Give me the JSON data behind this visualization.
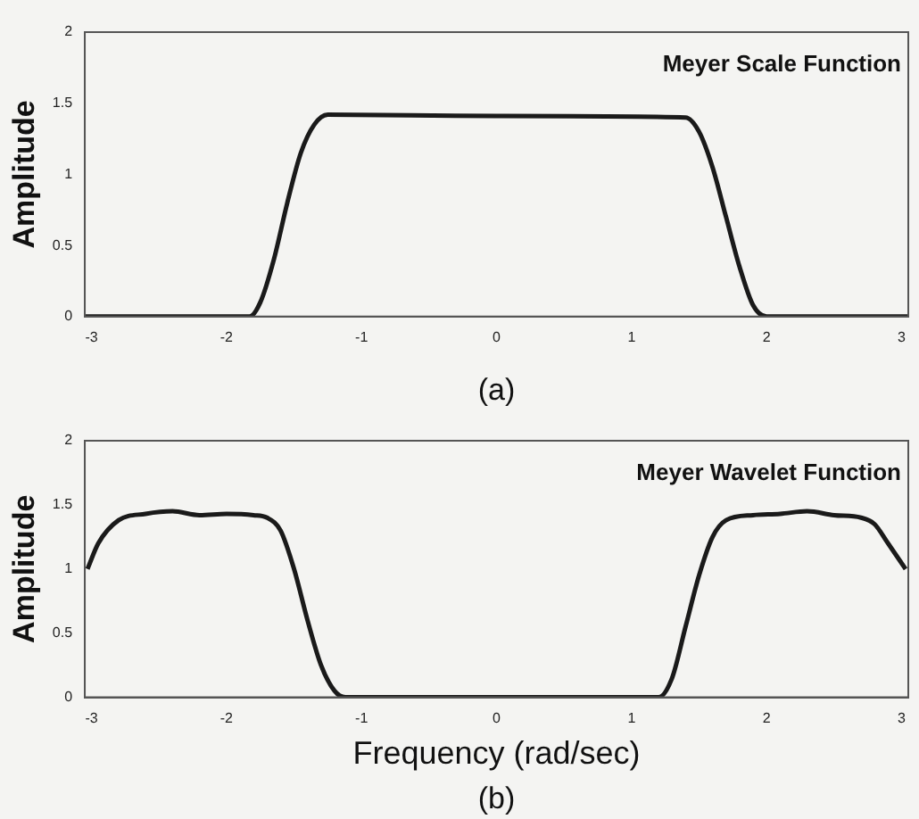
{
  "chart_data": [
    {
      "type": "line",
      "title": "Meyer Scale Function",
      "ylabel": "Amplitude",
      "annotations": [
        "(a)"
      ],
      "marker": "none",
      "xlim": [
        -3.05,
        3.05
      ],
      "ylim": [
        0,
        2
      ],
      "xticks": [
        -3,
        -2,
        -1,
        0,
        1,
        2,
        3
      ],
      "yticks": [
        0,
        0.5,
        1,
        1.5,
        2
      ],
      "series": [
        {
          "color": "#1a1a1a",
          "x": [
            -3.05,
            -1.83,
            -1.75,
            -1.65,
            -1.55,
            -1.45,
            -1.35,
            -1.25,
            0,
            1.4,
            1.5,
            1.6,
            1.7,
            1.8,
            1.9,
            2.0,
            3.05
          ],
          "values": [
            0,
            0,
            0.1,
            0.4,
            0.8,
            1.15,
            1.35,
            1.42,
            1.41,
            1.4,
            1.3,
            1.05,
            0.7,
            0.35,
            0.08,
            0,
            0
          ]
        }
      ]
    },
    {
      "type": "line",
      "title": "Meyer Wavelet Function",
      "xlabel": "Frequency (rad/sec)",
      "ylabel": "Amplitude",
      "annotations": [
        "(b)"
      ],
      "marker": "none",
      "xlim": [
        -3.05,
        3.05
      ],
      "ylim": [
        0,
        2
      ],
      "xticks": [
        -3,
        -2,
        -1,
        0,
        1,
        2,
        3
      ],
      "yticks": [
        0,
        0.5,
        1,
        1.5,
        2
      ],
      "series": [
        {
          "color": "#1a1a1a",
          "x": [
            -3.03,
            -2.95,
            -2.8,
            -2.6,
            -2.4,
            -2.2,
            -2.0,
            -1.8,
            -1.7,
            -1.6,
            -1.5,
            -1.4,
            -1.3,
            -1.2,
            -1.12,
            0,
            1.2,
            1.3,
            1.4,
            1.5,
            1.6,
            1.7,
            1.9,
            2.1,
            2.3,
            2.5,
            2.7,
            2.8,
            2.9,
            3.03
          ],
          "values": [
            1.0,
            1.2,
            1.38,
            1.43,
            1.45,
            1.42,
            1.43,
            1.42,
            1.4,
            1.3,
            1.0,
            0.6,
            0.25,
            0.05,
            0,
            0,
            0,
            0.15,
            0.55,
            0.95,
            1.25,
            1.38,
            1.42,
            1.43,
            1.45,
            1.42,
            1.4,
            1.35,
            1.2,
            1.0
          ]
        }
      ]
    }
  ]
}
